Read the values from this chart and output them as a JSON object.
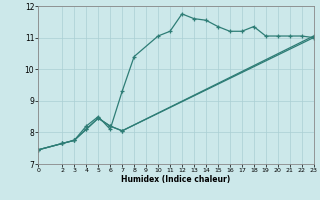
{
  "xlabel": "Humidex (Indice chaleur)",
  "bg_color": "#cce8ea",
  "line_color": "#2e7d76",
  "grid_color": "#aacfd4",
  "xlim": [
    0,
    23
  ],
  "ylim": [
    7,
    12
  ],
  "yticks": [
    7,
    8,
    9,
    10,
    11,
    12
  ],
  "xticks": [
    0,
    2,
    3,
    4,
    5,
    6,
    7,
    8,
    9,
    10,
    11,
    12,
    13,
    14,
    15,
    16,
    17,
    18,
    19,
    20,
    21,
    22,
    23
  ],
  "line1_x": [
    0,
    2,
    3,
    4,
    5,
    6,
    7,
    8,
    10,
    11,
    12,
    13,
    14,
    15,
    16,
    17,
    18,
    19,
    20,
    21,
    22,
    23
  ],
  "line1_y": [
    7.45,
    7.65,
    7.75,
    8.2,
    8.5,
    8.1,
    9.3,
    10.4,
    11.05,
    11.2,
    11.75,
    11.6,
    11.55,
    11.35,
    11.2,
    11.2,
    11.35,
    11.05,
    11.05,
    11.05,
    11.05,
    11.0
  ],
  "line2_x": [
    0,
    2,
    3,
    4,
    5,
    6,
    7,
    23
  ],
  "line2_y": [
    7.45,
    7.65,
    7.75,
    8.1,
    8.45,
    8.2,
    8.05,
    11.05
  ],
  "line3_x": [
    0,
    2,
    3,
    4,
    5,
    6,
    7,
    23
  ],
  "line3_y": [
    7.45,
    7.65,
    7.75,
    8.1,
    8.45,
    8.2,
    8.05,
    11.0
  ]
}
